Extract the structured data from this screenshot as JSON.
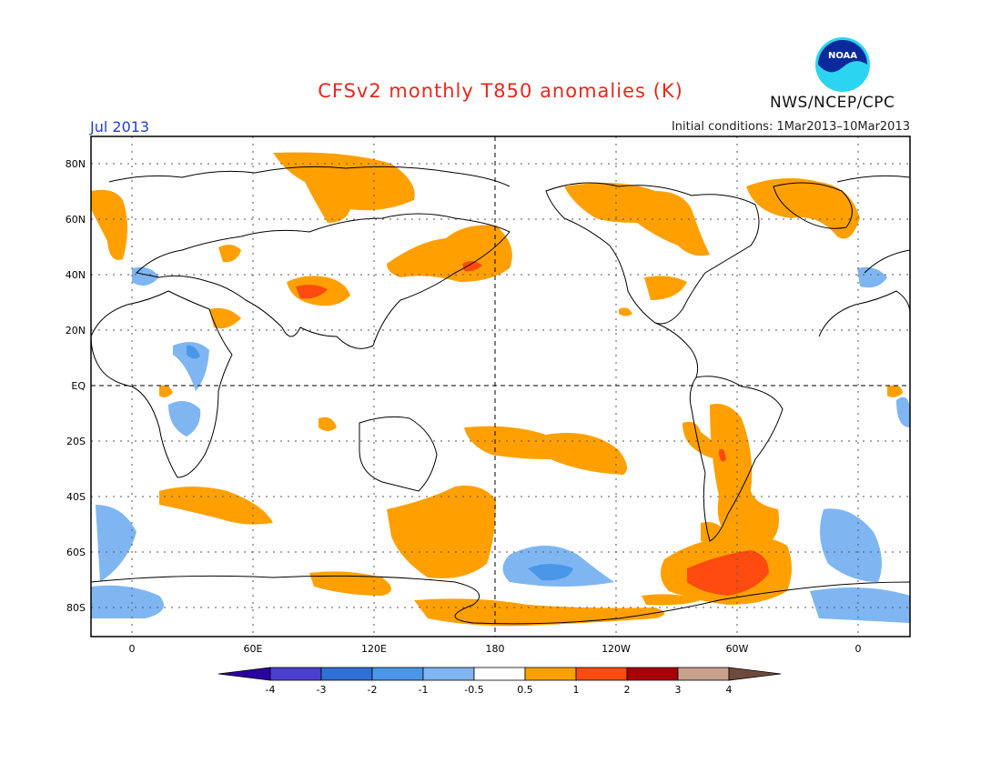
{
  "header": {
    "title": "CFSv2 monthly T850 anomalies (K)",
    "month": "Jul 2013",
    "initial_conditions": "Initial conditions: 1Mar2013–10Mar2013",
    "agency": "NWS/NCEP/CPC",
    "logo_text": "NOAA",
    "logo_icon": "noaa-logo-icon"
  },
  "map": {
    "lat_labels": [
      "80N",
      "60N",
      "40N",
      "20N",
      "EQ",
      "20S",
      "40S",
      "60S",
      "80S"
    ],
    "lon_labels": [
      "0",
      "60E",
      "120E",
      "180",
      "120W",
      "60W",
      "0"
    ]
  },
  "colorbar": {
    "levels": [
      "-4",
      "-3",
      "-2",
      "-1",
      "-0.5",
      "0.5",
      "1",
      "2",
      "3",
      "4"
    ],
    "colors": {
      "lt_neg4": "#2b00a0",
      "neg4_neg3": "#4a3fcf",
      "neg3_neg2": "#2f6fd8",
      "neg2_neg1": "#4a97ea",
      "neg1_neg05": "#7fb6f2",
      "neg05_05": "#ffffff",
      "p05_1": "#ffa000",
      "p1_2": "#ff4a10",
      "p2_3": "#a80008",
      "p3_4": "#c8a08c",
      "gt4": "#6e4a3a"
    }
  }
}
